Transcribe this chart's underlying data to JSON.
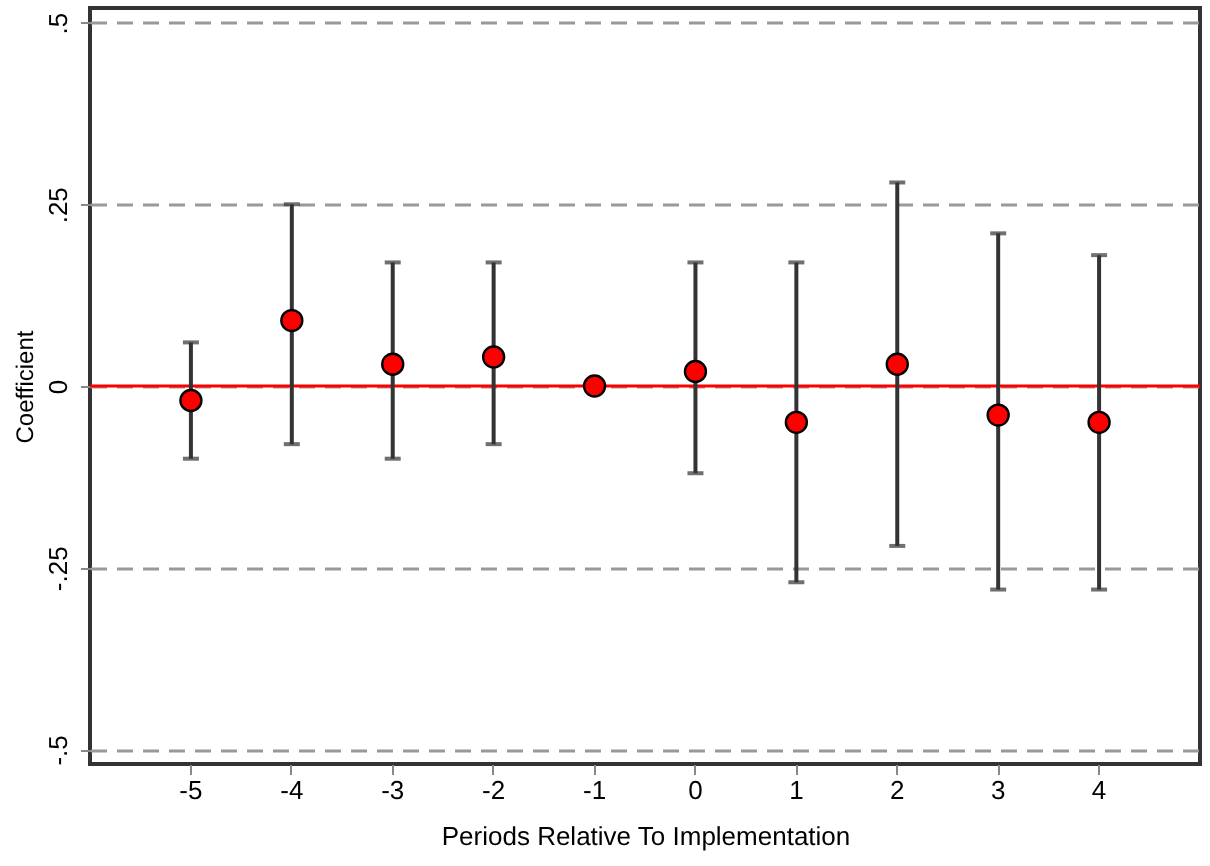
{
  "chart_data": {
    "type": "scatter",
    "xlabel": "Periods Relative To Implementation",
    "ylabel": "Coefficient",
    "categories": [
      "-5",
      "-4",
      "-3",
      "-2",
      "-1",
      "0",
      "1",
      "2",
      "3",
      "4"
    ],
    "series": [
      {
        "color": "#ff0000",
        "values": [
          -0.02,
          0.09,
          0.03,
          0.04,
          0,
          0.02,
          -0.05,
          0.03,
          -0.04,
          -0.05
        ],
        "errors": [
          [
            -0.1,
            0.06
          ],
          [
            -0.08,
            0.25
          ],
          [
            -0.1,
            0.17
          ],
          [
            -0.08,
            0.17
          ],
          null,
          [
            -0.12,
            0.17
          ],
          [
            -0.27,
            0.17
          ],
          [
            -0.22,
            0.28
          ],
          [
            -0.28,
            0.21
          ],
          [
            -0.28,
            0.18
          ]
        ]
      }
    ],
    "ylim": [
      -0.52,
      0.52
    ],
    "yticks": [
      {
        "value": -0.5,
        "label": "-.5"
      },
      {
        "value": -0.25,
        "label": "-.25"
      },
      0,
      {
        "value": 0.25,
        "label": ".25"
      },
      {
        "value": 0.5,
        "label": ".5"
      }
    ],
    "grid": "y",
    "marker": "circle",
    "ref_lines": [
      {
        "axis": "y",
        "value": 0,
        "color": "#ff0000",
        "line_style": "solid"
      }
    ]
  }
}
